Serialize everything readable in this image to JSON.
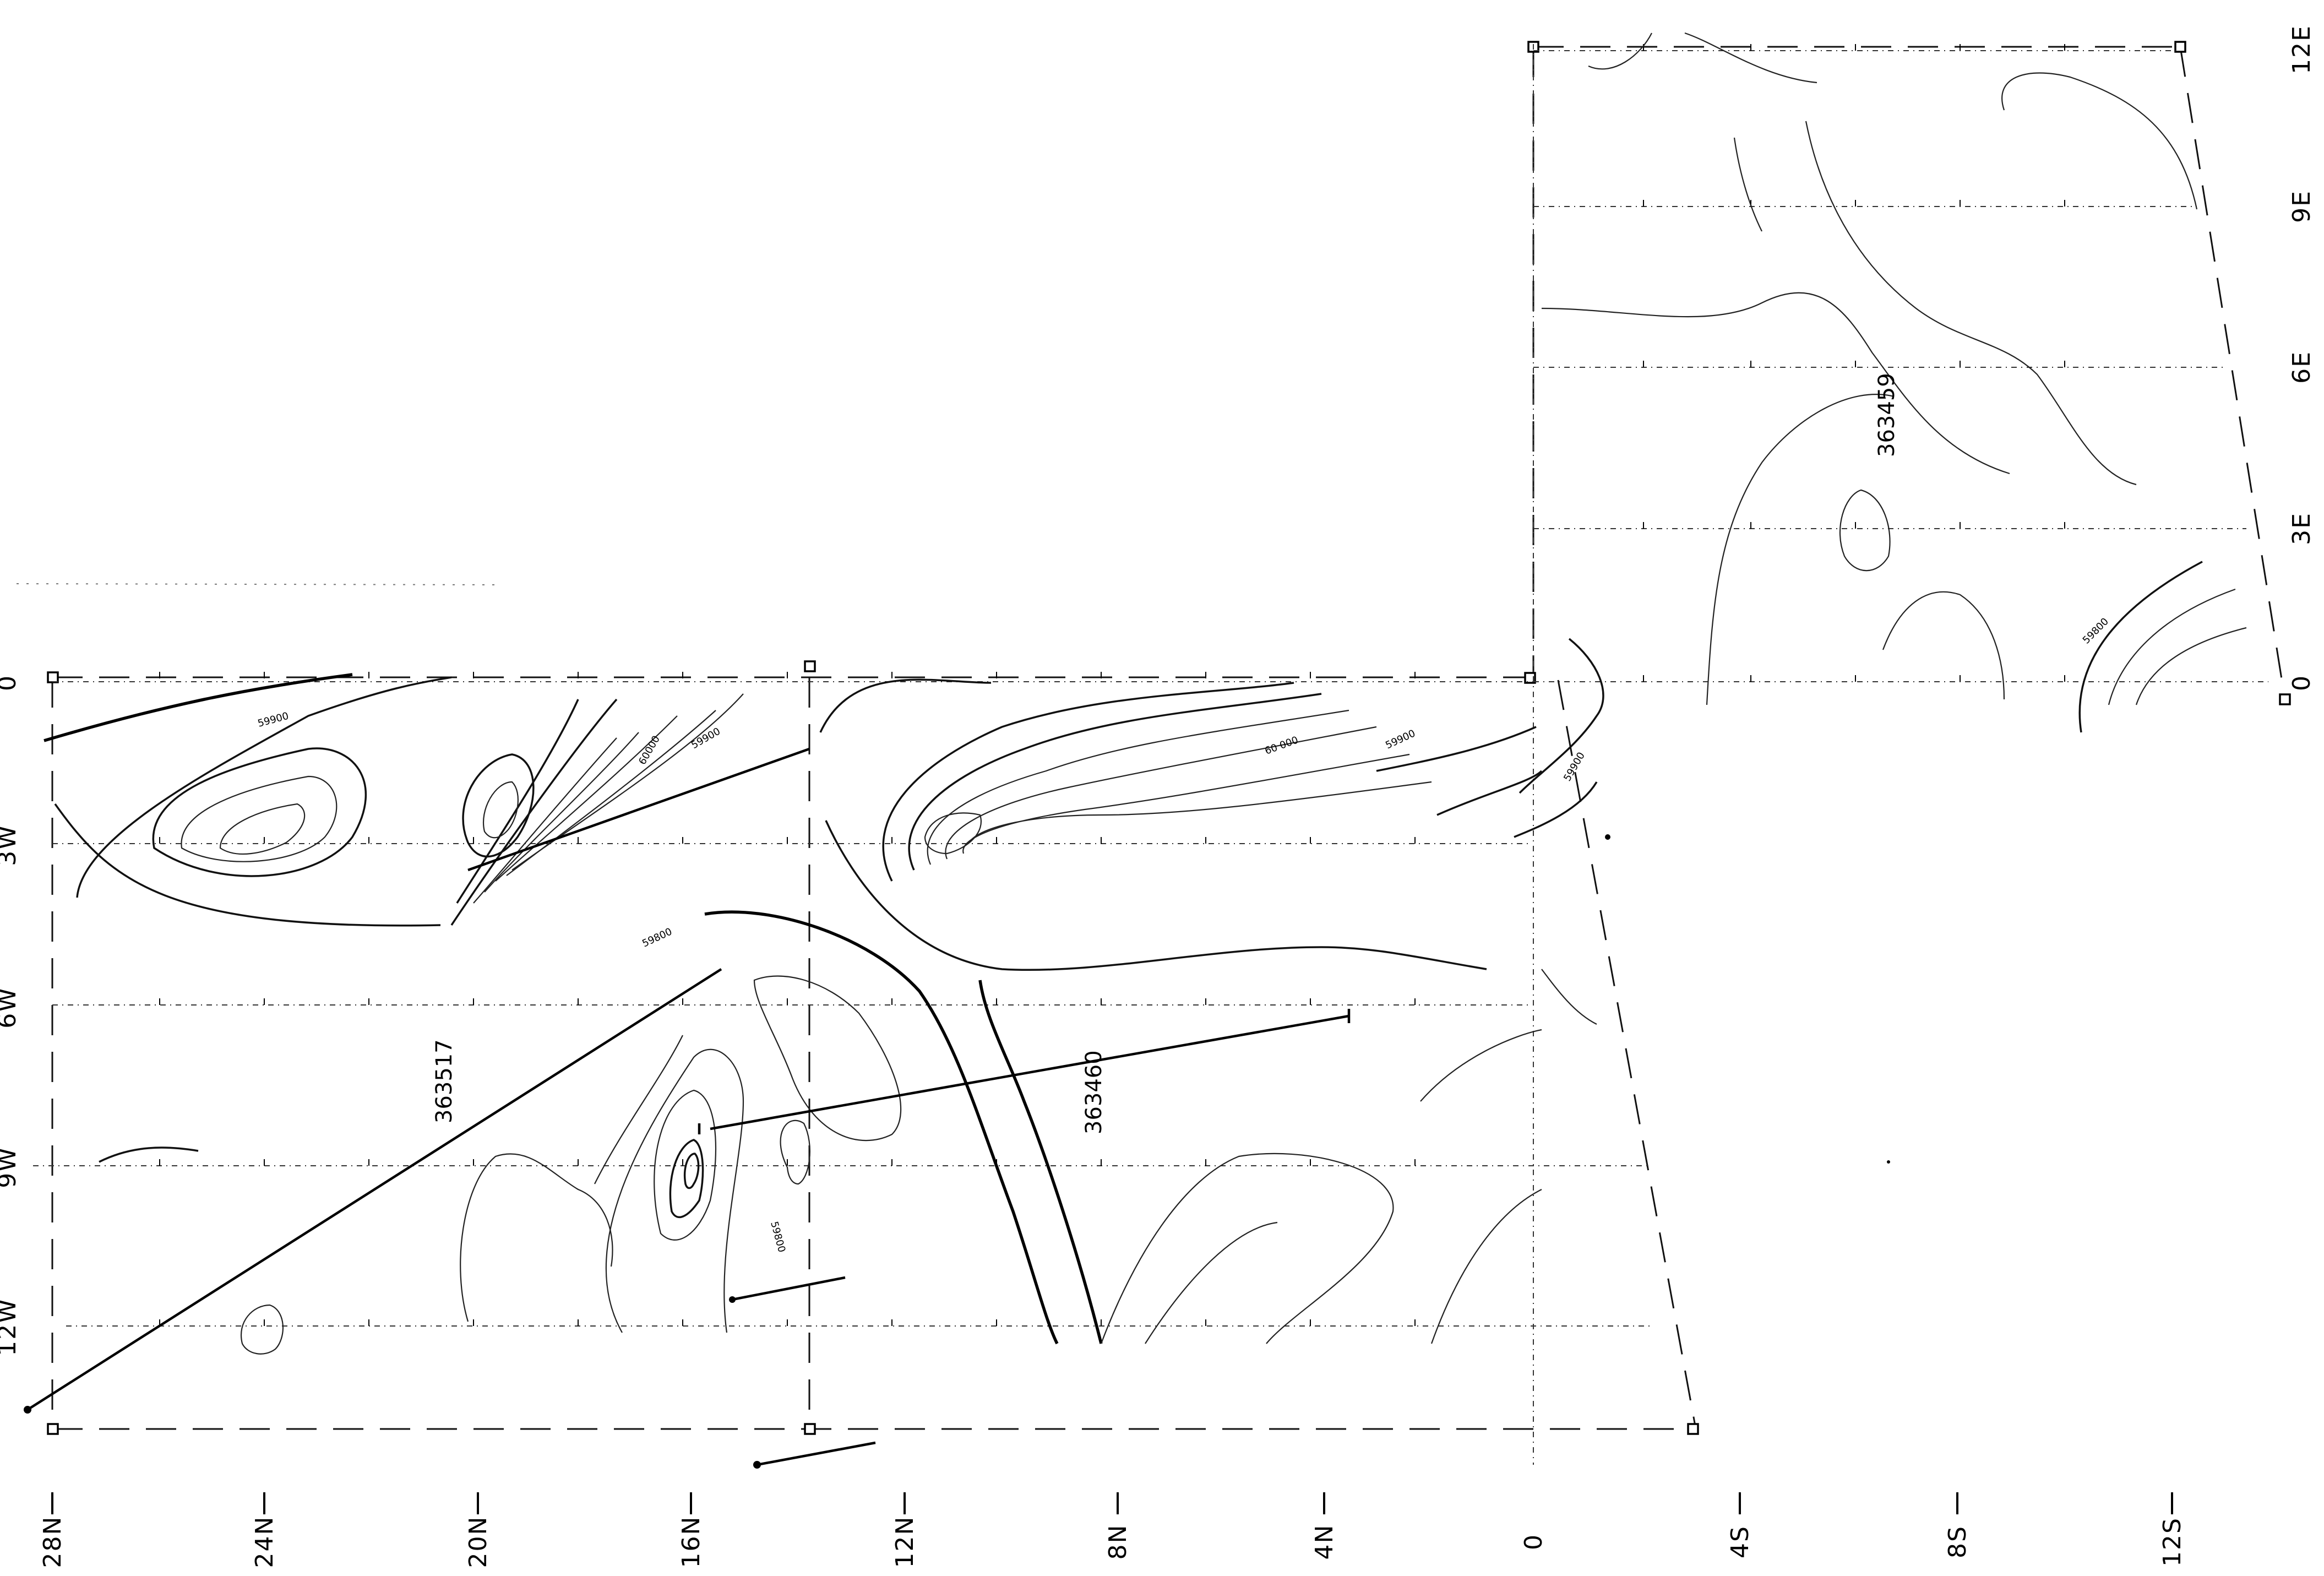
{
  "map": {
    "left_axis_labels": [
      "12W",
      "9W",
      "6W",
      "3W",
      "0"
    ],
    "right_axis_labels": [
      "0",
      "3E",
      "6E",
      "9E",
      "12E"
    ],
    "bottom_axis_labels": [
      "28N",
      "24N",
      "20N",
      "16N",
      "12N",
      "8N",
      "4N",
      "0",
      "4S",
      "8S",
      "12S"
    ],
    "profile_lines": [
      "363517",
      "363460",
      "363459"
    ],
    "contour_labels": [
      "59900",
      "60000",
      "59800",
      "60 000"
    ]
  }
}
